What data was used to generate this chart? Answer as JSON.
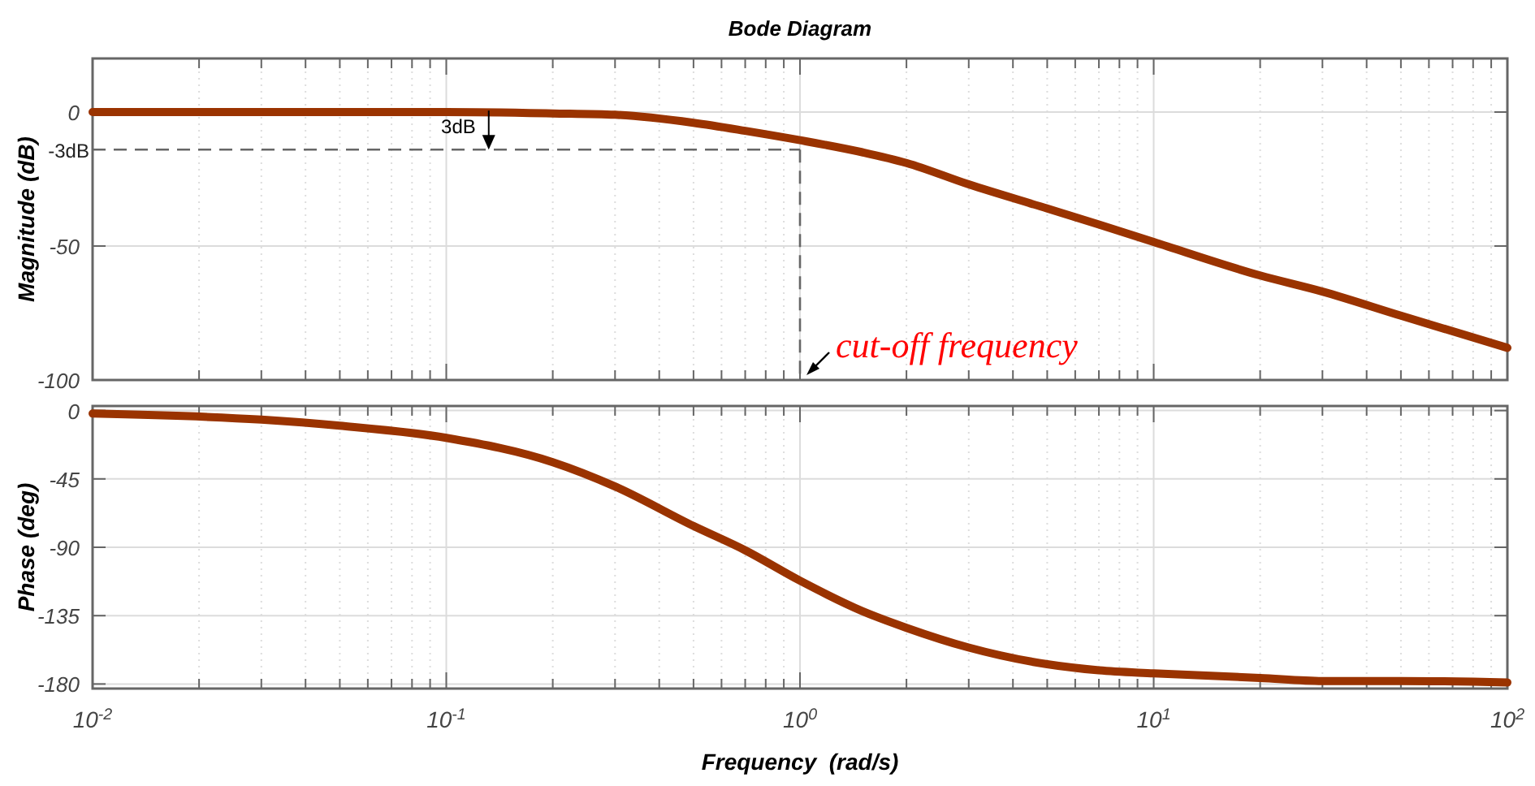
{
  "chart_data": [
    {
      "type": "line",
      "title": "Bode Diagram",
      "ylabel": "Magnitude (dB)",
      "log": "x",
      "grid": true,
      "line_style": "solid",
      "marker": "none",
      "tick_labels": "y",
      "xlim": [
        0.01,
        100
      ],
      "ylim": [
        -100,
        20
      ],
      "yticks": [
        -100,
        -50,
        0
      ],
      "xticks": [
        0.01,
        0.1,
        1,
        10,
        100
      ],
      "ref_lines": [
        {
          "axis": "y",
          "value": -14,
          "label": "-3dB",
          "line_style": "dashed",
          "color": "#666666"
        },
        {
          "axis": "x",
          "value": 1,
          "label": null,
          "line_style": "dashed",
          "color": "#666666"
        }
      ],
      "annotations": [
        "3dB",
        {
          "text": "cut-off frequency",
          "x": 1,
          "y": -100
        }
      ],
      "x": [
        0.01,
        0.1,
        0.2,
        0.3,
        0.5,
        0.7,
        1,
        1.5,
        2,
        3,
        5,
        7,
        10,
        20,
        30,
        50,
        100
      ],
      "series": [
        {
          "color": "#9a3300",
          "values": [
            0,
            0,
            -0.5,
            -1,
            -4,
            -7,
            -10.5,
            -15,
            -19,
            -27,
            -36,
            -42,
            -48.5,
            -61,
            -67,
            -76,
            -88
          ]
        }
      ]
    },
    {
      "type": "line",
      "ylabel": "Phase (deg)",
      "xlabel": "Frequency  (rad/s)",
      "log": "x",
      "grid": true,
      "line_style": "solid",
      "marker": "none",
      "xlim": [
        0.01,
        100
      ],
      "ylim": [
        -183,
        3
      ],
      "yticks": [
        -180,
        -135,
        -90,
        -45,
        0
      ],
      "xticks": [
        {
          "value": 0.01,
          "label": "10$^{-2}$"
        },
        {
          "value": 0.1,
          "label": "10$^{-1}$"
        },
        {
          "value": 1,
          "label": "10$^{0}$"
        },
        {
          "value": 10,
          "label": "10$^{1}$"
        },
        {
          "value": 100,
          "label": "10$^{2}$"
        }
      ],
      "x": [
        0.01,
        0.03,
        0.05,
        0.1,
        0.2,
        0.3,
        0.5,
        0.7,
        1,
        1.5,
        2,
        3,
        5,
        7,
        10,
        20,
        30,
        50,
        100
      ],
      "series": [
        {
          "color": "#9a3300",
          "values": [
            -2,
            -6,
            -10,
            -18,
            -34,
            -50,
            -76,
            -92,
            -112,
            -132,
            -143,
            -156,
            -167,
            -171,
            -173,
            -176,
            -178,
            -178,
            -179
          ]
        }
      ]
    }
  ]
}
